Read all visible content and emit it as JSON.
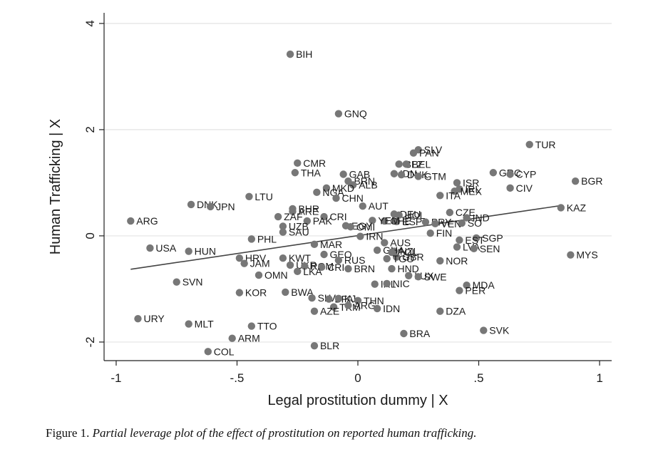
{
  "chart_data": {
    "type": "scatter",
    "xlabel": "Legal prostitution dummy | X",
    "ylabel": "Human Trafficking | X",
    "xlim": [
      -1.05,
      1.05
    ],
    "ylim": [
      -2.35,
      4.2
    ],
    "xticks": [
      {
        "v": -1,
        "label": "-1"
      },
      {
        "v": -0.5,
        "label": "-.5"
      },
      {
        "v": 0,
        "label": "0"
      },
      {
        "v": 0.5,
        "label": ".5"
      },
      {
        "v": 1,
        "label": "1"
      }
    ],
    "yticks": [
      {
        "v": -2,
        "label": "-2"
      },
      {
        "v": 0,
        "label": "0"
      },
      {
        "v": 2,
        "label": "2"
      },
      {
        "v": 4,
        "label": "4"
      }
    ],
    "grid": true,
    "fit_line": {
      "x": [
        -0.94,
        0.84
      ],
      "y": [
        -0.63,
        0.57
      ]
    },
    "points": [
      {
        "label": "BIH",
        "x": -0.28,
        "y": 3.42
      },
      {
        "label": "GNQ",
        "x": -0.08,
        "y": 2.3
      },
      {
        "label": "TUR",
        "x": 0.71,
        "y": 1.72
      },
      {
        "label": "SLV",
        "x": 0.25,
        "y": 1.62
      },
      {
        "label": "PAN",
        "x": 0.23,
        "y": 1.56
      },
      {
        "label": "BLZ",
        "x": 0.17,
        "y": 1.35
      },
      {
        "label": "BEL",
        "x": 0.2,
        "y": 1.35
      },
      {
        "label": "CMR",
        "x": -0.25,
        "y": 1.37
      },
      {
        "label": "THA",
        "x": -0.26,
        "y": 1.19
      },
      {
        "label": "GAB",
        "x": -0.06,
        "y": 1.16
      },
      {
        "label": "GRC",
        "x": 0.56,
        "y": 1.19
      },
      {
        "label": "CYP",
        "x": 0.63,
        "y": 1.16
      },
      {
        "label": "IDN",
        "x": 0.15,
        "y": 1.17
      },
      {
        "label": "DNK",
        "x": 0.18,
        "y": 1.15
      },
      {
        "label": "GTM",
        "x": 0.25,
        "y": 1.12
      },
      {
        "label": "BGR",
        "x": 0.9,
        "y": 1.03
      },
      {
        "label": "ISR",
        "x": 0.41,
        "y": 1.0
      },
      {
        "label": "BRN",
        "x": -0.04,
        "y": 1.03
      },
      {
        "label": "ALB",
        "x": -0.02,
        "y": 0.96
      },
      {
        "label": "MKD",
        "x": -0.13,
        "y": 0.9
      },
      {
        "label": "NGA",
        "x": -0.17,
        "y": 0.82
      },
      {
        "label": "CIV",
        "x": 0.63,
        "y": 0.9
      },
      {
        "label": "IRL",
        "x": 0.42,
        "y": 0.88
      },
      {
        "label": "MEX",
        "x": 0.4,
        "y": 0.84
      },
      {
        "label": "ITA",
        "x": 0.34,
        "y": 0.76
      },
      {
        "label": "LTU",
        "x": -0.45,
        "y": 0.74
      },
      {
        "label": "CHN",
        "x": -0.09,
        "y": 0.71
      },
      {
        "label": "DNK",
        "x": -0.69,
        "y": 0.59
      },
      {
        "label": "JPN",
        "x": -0.61,
        "y": 0.55
      },
      {
        "label": "AUT",
        "x": 0.02,
        "y": 0.56
      },
      {
        "label": "KAZ",
        "x": 0.84,
        "y": 0.53
      },
      {
        "label": "BHR",
        "x": -0.27,
        "y": 0.51
      },
      {
        "label": "ARE",
        "x": -0.27,
        "y": 0.46
      },
      {
        "label": "CZE",
        "x": 0.38,
        "y": 0.44
      },
      {
        "label": "DEU",
        "x": 0.15,
        "y": 0.41
      },
      {
        "label": "HOL",
        "x": 0.17,
        "y": 0.39
      },
      {
        "label": "IND",
        "x": 0.45,
        "y": 0.34
      },
      {
        "label": "CRI",
        "x": -0.14,
        "y": 0.36
      },
      {
        "label": "ZAF",
        "x": -0.33,
        "y": 0.36
      },
      {
        "label": "PAK",
        "x": -0.21,
        "y": 0.28
      },
      {
        "label": "ESP",
        "x": 0.16,
        "y": 0.27
      },
      {
        "label": "CHE",
        "x": 0.11,
        "y": 0.28
      },
      {
        "label": "YEM",
        "x": 0.06,
        "y": 0.29
      },
      {
        "label": "PRY",
        "x": 0.28,
        "y": 0.26
      },
      {
        "label": "VEN",
        "x": 0.32,
        "y": 0.23
      },
      {
        "label": "SO",
        "x": 0.43,
        "y": 0.24
      },
      {
        "label": "ARG",
        "x": -0.94,
        "y": 0.28
      },
      {
        "label": "EGY",
        "x": -0.05,
        "y": 0.19
      },
      {
        "label": "OMI",
        "x": -0.03,
        "y": 0.17
      },
      {
        "label": "UZB",
        "x": -0.31,
        "y": 0.18
      },
      {
        "label": "SAU",
        "x": -0.31,
        "y": 0.07
      },
      {
        "label": "FIN",
        "x": 0.3,
        "y": 0.05
      },
      {
        "label": "IRN",
        "x": 0.01,
        "y": -0.01
      },
      {
        "label": "SGP",
        "x": 0.49,
        "y": -0.04
      },
      {
        "label": "EST",
        "x": 0.42,
        "y": -0.08
      },
      {
        "label": "PHL",
        "x": -0.44,
        "y": -0.06
      },
      {
        "label": "AUS",
        "x": 0.11,
        "y": -0.13
      },
      {
        "label": "LVA",
        "x": 0.41,
        "y": -0.21
      },
      {
        "label": "MAR",
        "x": -0.18,
        "y": -0.16
      },
      {
        "label": "SEN",
        "x": 0.48,
        "y": -0.24
      },
      {
        "label": "USA",
        "x": -0.86,
        "y": -0.23
      },
      {
        "label": "HUN",
        "x": -0.7,
        "y": -0.29
      },
      {
        "label": "NZL",
        "x": 0.15,
        "y": -0.29
      },
      {
        "label": "GHA",
        "x": 0.08,
        "y": -0.27
      },
      {
        "label": "POL",
        "x": 0.14,
        "y": -0.31
      },
      {
        "label": "MYS",
        "x": 0.88,
        "y": -0.36
      },
      {
        "label": "GEO",
        "x": -0.14,
        "y": -0.35
      },
      {
        "label": "GBR",
        "x": 0.16,
        "y": -0.4
      },
      {
        "label": "KWT",
        "x": -0.31,
        "y": -0.42
      },
      {
        "label": "HRV",
        "x": -0.49,
        "y": -0.42
      },
      {
        "label": "RUS",
        "x": -0.08,
        "y": -0.46
      },
      {
        "label": "TGO",
        "x": 0.12,
        "y": -0.43
      },
      {
        "label": "NOR",
        "x": 0.34,
        "y": -0.47
      },
      {
        "label": "JAM",
        "x": -0.47,
        "y": -0.52
      },
      {
        "label": "UKR",
        "x": -0.28,
        "y": -0.55
      },
      {
        "label": "ROM",
        "x": -0.22,
        "y": -0.57
      },
      {
        "label": "CRI",
        "x": -0.15,
        "y": -0.59
      },
      {
        "label": "BRN",
        "x": -0.04,
        "y": -0.62
      },
      {
        "label": "HND",
        "x": 0.14,
        "y": -0.62
      },
      {
        "label": "LKA",
        "x": -0.25,
        "y": -0.67
      },
      {
        "label": "OMN",
        "x": -0.41,
        "y": -0.74
      },
      {
        "label": "LUX",
        "x": 0.21,
        "y": -0.75
      },
      {
        "label": "SWE",
        "x": 0.25,
        "y": -0.77
      },
      {
        "label": "SVN",
        "x": -0.75,
        "y": -0.87
      },
      {
        "label": "IRL",
        "x": 0.07,
        "y": -0.91
      },
      {
        "label": "NIC",
        "x": 0.12,
        "y": -0.9
      },
      {
        "label": "MDA",
        "x": 0.45,
        "y": -0.93
      },
      {
        "label": "PER",
        "x": 0.42,
        "y": -1.03
      },
      {
        "label": "KOR",
        "x": -0.49,
        "y": -1.07
      },
      {
        "label": "BWA",
        "x": -0.3,
        "y": -1.06
      },
      {
        "label": "SLV",
        "x": -0.19,
        "y": -1.17
      },
      {
        "label": "BFA",
        "x": -0.12,
        "y": -1.19
      },
      {
        "label": "KJ",
        "x": -0.08,
        "y": -1.18
      },
      {
        "label": "THN",
        "x": 0.0,
        "y": -1.22
      },
      {
        "label": "TKM",
        "x": -0.1,
        "y": -1.34
      },
      {
        "label": "ARG",
        "x": -0.04,
        "y": -1.31
      },
      {
        "label": "IDN",
        "x": 0.08,
        "y": -1.37
      },
      {
        "label": "AZE",
        "x": -0.18,
        "y": -1.42
      },
      {
        "label": "DZA",
        "x": 0.34,
        "y": -1.42
      },
      {
        "label": "URY",
        "x": -0.91,
        "y": -1.56
      },
      {
        "label": "MLT",
        "x": -0.7,
        "y": -1.66
      },
      {
        "label": "TTO",
        "x": -0.44,
        "y": -1.7
      },
      {
        "label": "SVK",
        "x": 0.52,
        "y": -1.78
      },
      {
        "label": "BRA",
        "x": 0.19,
        "y": -1.84
      },
      {
        "label": "ARM",
        "x": -0.52,
        "y": -1.93
      },
      {
        "label": "BLR",
        "x": -0.18,
        "y": -2.07
      },
      {
        "label": "COL",
        "x": -0.62,
        "y": -2.18
      }
    ]
  },
  "caption": {
    "prefix": "Figure 1.",
    "text": "Partial leverage plot of the effect of prostitution on reported human trafficking."
  }
}
